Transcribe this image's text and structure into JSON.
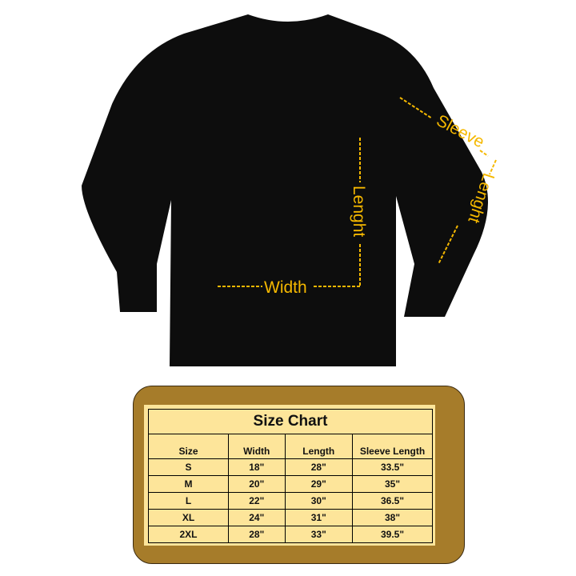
{
  "colors": {
    "shirt": "#0d0d0d",
    "measure": "#f5b800",
    "frame": "#a67c2a",
    "table_bg": "#fde59a"
  },
  "labels": {
    "width": "Width",
    "length": "Lenght",
    "sleeve": "Sleeve",
    "sleeve_length": "Lenght"
  },
  "size_chart": {
    "title": "Size Chart",
    "headers": [
      "Size",
      "Width",
      "Length",
      "Sleeve Length"
    ],
    "rows": [
      [
        "S",
        "18\"",
        "28\"",
        "33.5\""
      ],
      [
        "M",
        "20\"",
        "29\"",
        "35\""
      ],
      [
        "L",
        "22\"",
        "30\"",
        "36.5\""
      ],
      [
        "XL",
        "24\"",
        "31\"",
        "38\""
      ],
      [
        "2XL",
        "28\"",
        "33\"",
        "39.5\""
      ]
    ]
  }
}
